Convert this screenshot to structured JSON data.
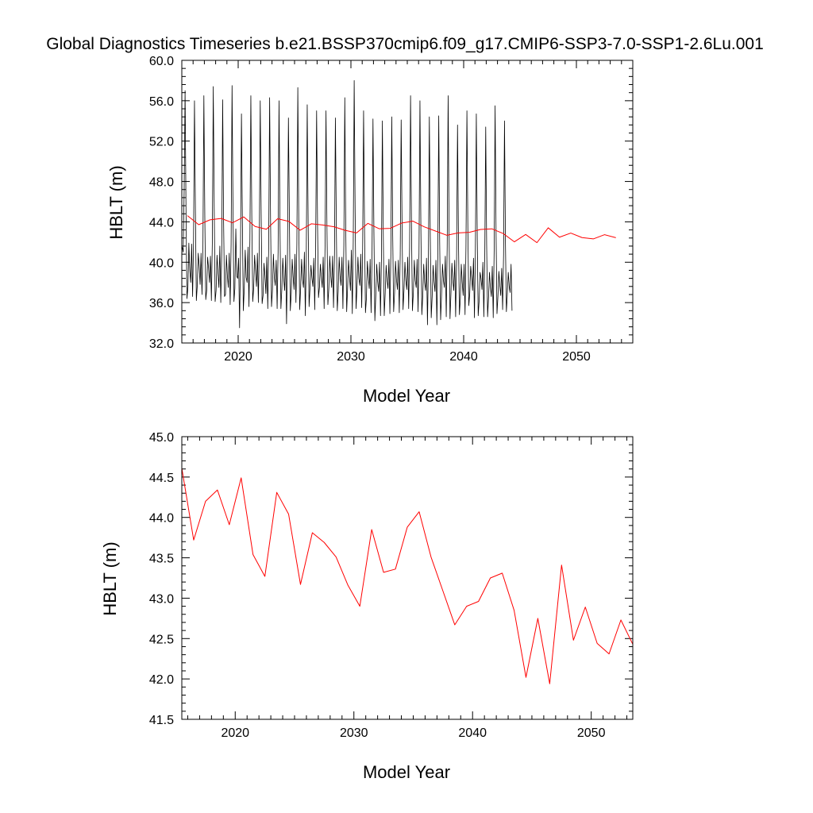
{
  "title": "Global Diagnostics Timeseries b.e21.BSSP370cmip6.f09_g17.CMIP6-SSP3-7.0-SSP1-2.6Lu.001",
  "colors": {
    "monthly": "#000000",
    "annual": "#ff0000",
    "axes": "#000000"
  },
  "chart_data": [
    {
      "type": "line",
      "xlabel": "Model Year",
      "ylabel": "HBLT (m)",
      "xlim": [
        2015,
        2055
      ],
      "ylim": [
        32.0,
        60.0
      ],
      "xticks": [
        2020,
        2030,
        2040,
        2050
      ],
      "xtick_labels": [
        "2020",
        "2030",
        "2040",
        "2050"
      ],
      "yticks": [
        32,
        36,
        40,
        44,
        48,
        52,
        56,
        60
      ],
      "ytick_labels": [
        "32.0",
        "36.0",
        "40.0",
        "44.0",
        "48.0",
        "52.0",
        "56.0",
        "60.0"
      ],
      "grid": false,
      "legend": "none",
      "series": [
        {
          "style": "monthly",
          "x_start": 2015.04,
          "x_step": 0.08333,
          "values": [
            41.5,
            41.0,
            47.0,
            57.0,
            45.0,
            36.4,
            37.5,
            41.9,
            39.2,
            38.0,
            41.8,
            36.6,
            42.0,
            56.0,
            45.0,
            36.2,
            37.7,
            40.9,
            39.6,
            37.8,
            40.9,
            36.8,
            41.5,
            56.5,
            44.5,
            36.3,
            37.2,
            40.5,
            39.4,
            38.0,
            40.6,
            36.2,
            42.0,
            57.4,
            45.5,
            36.1,
            37.2,
            40.7,
            39.0,
            37.5,
            41.6,
            36.0,
            41.0,
            56.1,
            44.0,
            36.6,
            36.8,
            40.7,
            38.7,
            37.5,
            40.9,
            35.8,
            41.8,
            57.5,
            45.0,
            36.1,
            37.4,
            43.3,
            38.6,
            38.4,
            40.4,
            33.5,
            41.0,
            54.7,
            44.0,
            35.2,
            37.4,
            41.2,
            38.5,
            38.0,
            41.5,
            35.6,
            42.2,
            56.5,
            44.6,
            36.1,
            37.4,
            40.7,
            39.1,
            37.6,
            40.9,
            36.0,
            41.7,
            56.0,
            44.7,
            35.9,
            36.7,
            39.9,
            38.7,
            36.9,
            40.5,
            35.4,
            41.5,
            56.3,
            44.1,
            35.6,
            37.3,
            40.8,
            38.5,
            37.7,
            40.2,
            35.4,
            41.0,
            56.0,
            43.6,
            35.4,
            37.4,
            40.4,
            38.4,
            37.2,
            40.7,
            33.9,
            41.0,
            54.3,
            44.7,
            35.2,
            36.9,
            40.3,
            38.6,
            37.3,
            40.8,
            36.0,
            41.8,
            57.3,
            44.0,
            35.3,
            37.4,
            40.3,
            38.3,
            37.5,
            41.0,
            34.7,
            40.4,
            55.6,
            43.8,
            35.6,
            37.5,
            39.7,
            38.5,
            37.6,
            40.4,
            35.3,
            41.6,
            55.0,
            43.6,
            36.5,
            37.5,
            39.8,
            38.6,
            37.5,
            40.5,
            35.4,
            41.7,
            55.0,
            43.5,
            35.8,
            37.4,
            40.6,
            38.7,
            37.5,
            40.6,
            35.5,
            40.4,
            54.3,
            43.4,
            35.2,
            37.1,
            40.5,
            38.6,
            37.7,
            40.5,
            35.4,
            41.7,
            56.3,
            43.6,
            35.1,
            37.5,
            40.2,
            38.6,
            37.2,
            41.2,
            34.9,
            42.0,
            58.0,
            45.0,
            35.4,
            37.6,
            40.5,
            38.4,
            37.7,
            40.8,
            35.5,
            41.3,
            55.0,
            43.3,
            35.0,
            36.4,
            40.1,
            38.6,
            37.4,
            40.3,
            35.0,
            40.7,
            54.2,
            43.0,
            34.2,
            36.7,
            39.8,
            38.1,
            37.1,
            40.0,
            34.7,
            40.3,
            54.0,
            42.5,
            34.7,
            36.9,
            39.7,
            38.2,
            37.4,
            40.3,
            34.9,
            40.7,
            54.4,
            42.7,
            35.1,
            37.0,
            40.1,
            38.3,
            37.3,
            40.2,
            35.0,
            40.7,
            54.1,
            43.0,
            35.3,
            37.2,
            40.0,
            38.2,
            37.3,
            40.5,
            35.4,
            41.5,
            56.5,
            43.5,
            35.2,
            37.0,
            40.2,
            38.2,
            37.5,
            40.3,
            35.1,
            41.0,
            56.0,
            43.3,
            34.8,
            36.7,
            39.8,
            38.0,
            37.2,
            40.4,
            33.8,
            40.0,
            54.4,
            42.5,
            34.5,
            36.6,
            39.7,
            38.1,
            37.1,
            40.2,
            33.8,
            40.6,
            54.5,
            42.0,
            34.3,
            36.8,
            39.8,
            38.2,
            37.5,
            40.6,
            34.6,
            41.5,
            56.5,
            43.0,
            34.4,
            36.9,
            39.9,
            38.2,
            37.2,
            40.2,
            34.6,
            40.3,
            53.6,
            42.3,
            34.8,
            36.4,
            39.8,
            38.0,
            36.7,
            39.8,
            34.8,
            41.6,
            55.0,
            43.2,
            35.7,
            36.9,
            39.6,
            38.5,
            37.2,
            40.4,
            34.5,
            40.9,
            54.7,
            42.3,
            34.7,
            36.2,
            39.0,
            38.4,
            37.3,
            40.0,
            34.6,
            40.6,
            53.4,
            41.7,
            34.6,
            36.5,
            39.0,
            37.5,
            36.6,
            39.6,
            34.5,
            41.3,
            55.5,
            43.0,
            34.9,
            36.6,
            39.1,
            37.7,
            36.7,
            39.4,
            35.3,
            40.7,
            54.0,
            42.0,
            35.1,
            36.8,
            39.0,
            37.6,
            37.0,
            39.8,
            35.2
          ]
        },
        {
          "style": "annual",
          "x": [
            2015.5,
            2016.5,
            2017.5,
            2018.5,
            2019.5,
            2020.5,
            2021.5,
            2022.5,
            2023.5,
            2024.5,
            2025.5,
            2026.5,
            2027.5,
            2028.5,
            2029.5,
            2030.5,
            2031.5,
            2032.5,
            2033.5,
            2034.5,
            2035.5,
            2036.5,
            2037.5,
            2038.5,
            2039.5,
            2040.5,
            2041.5,
            2042.5,
            2043.5,
            2044.5,
            2045.5,
            2046.5,
            2047.5,
            2048.5,
            2049.5,
            2050.5,
            2051.5,
            2052.5,
            2053.5
          ],
          "values": [
            44.61,
            43.72,
            44.2,
            44.34,
            43.91,
            44.49,
            43.54,
            43.27,
            44.31,
            44.04,
            43.17,
            43.81,
            43.69,
            43.51,
            43.16,
            42.9,
            43.85,
            43.32,
            43.36,
            43.88,
            44.07,
            43.51,
            43.09,
            42.67,
            42.9,
            42.96,
            43.25,
            43.31,
            42.85,
            42.02,
            42.75,
            41.94,
            43.41,
            42.48,
            42.89,
            42.44,
            42.31,
            42.73,
            42.43
          ]
        }
      ]
    },
    {
      "type": "line",
      "xlabel": "Model Year",
      "ylabel": "HBLT (m)",
      "xlim": [
        2015.5,
        2053.5
      ],
      "ylim": [
        41.5,
        45.0
      ],
      "xticks": [
        2020,
        2030,
        2040,
        2050
      ],
      "xtick_labels": [
        "2020",
        "2030",
        "2040",
        "2050"
      ],
      "yticks": [
        41.5,
        42.0,
        42.5,
        43.0,
        43.5,
        44.0,
        44.5,
        45.0
      ],
      "ytick_labels": [
        "41.5",
        "42.0",
        "42.5",
        "43.0",
        "43.5",
        "44.0",
        "44.5",
        "45.0"
      ],
      "grid": false,
      "legend": "none",
      "series": [
        {
          "style": "annual",
          "x": [
            2015.5,
            2016.5,
            2017.5,
            2018.5,
            2019.5,
            2020.5,
            2021.5,
            2022.5,
            2023.5,
            2024.5,
            2025.5,
            2026.5,
            2027.5,
            2028.5,
            2029.5,
            2030.5,
            2031.5,
            2032.5,
            2033.5,
            2034.5,
            2035.5,
            2036.5,
            2037.5,
            2038.5,
            2039.5,
            2040.5,
            2041.5,
            2042.5,
            2043.5,
            2044.5,
            2045.5,
            2046.5,
            2047.5,
            2048.5,
            2049.5,
            2050.5,
            2051.5,
            2052.5,
            2053.5
          ],
          "values": [
            44.61,
            43.72,
            44.2,
            44.34,
            43.91,
            44.49,
            43.54,
            43.27,
            44.31,
            44.04,
            43.17,
            43.81,
            43.69,
            43.51,
            43.16,
            42.9,
            43.85,
            43.32,
            43.36,
            43.88,
            44.07,
            43.51,
            43.09,
            42.67,
            42.9,
            42.96,
            43.25,
            43.31,
            42.85,
            42.02,
            42.75,
            41.94,
            43.41,
            42.48,
            42.89,
            42.44,
            42.31,
            42.73,
            42.43
          ]
        }
      ]
    }
  ]
}
